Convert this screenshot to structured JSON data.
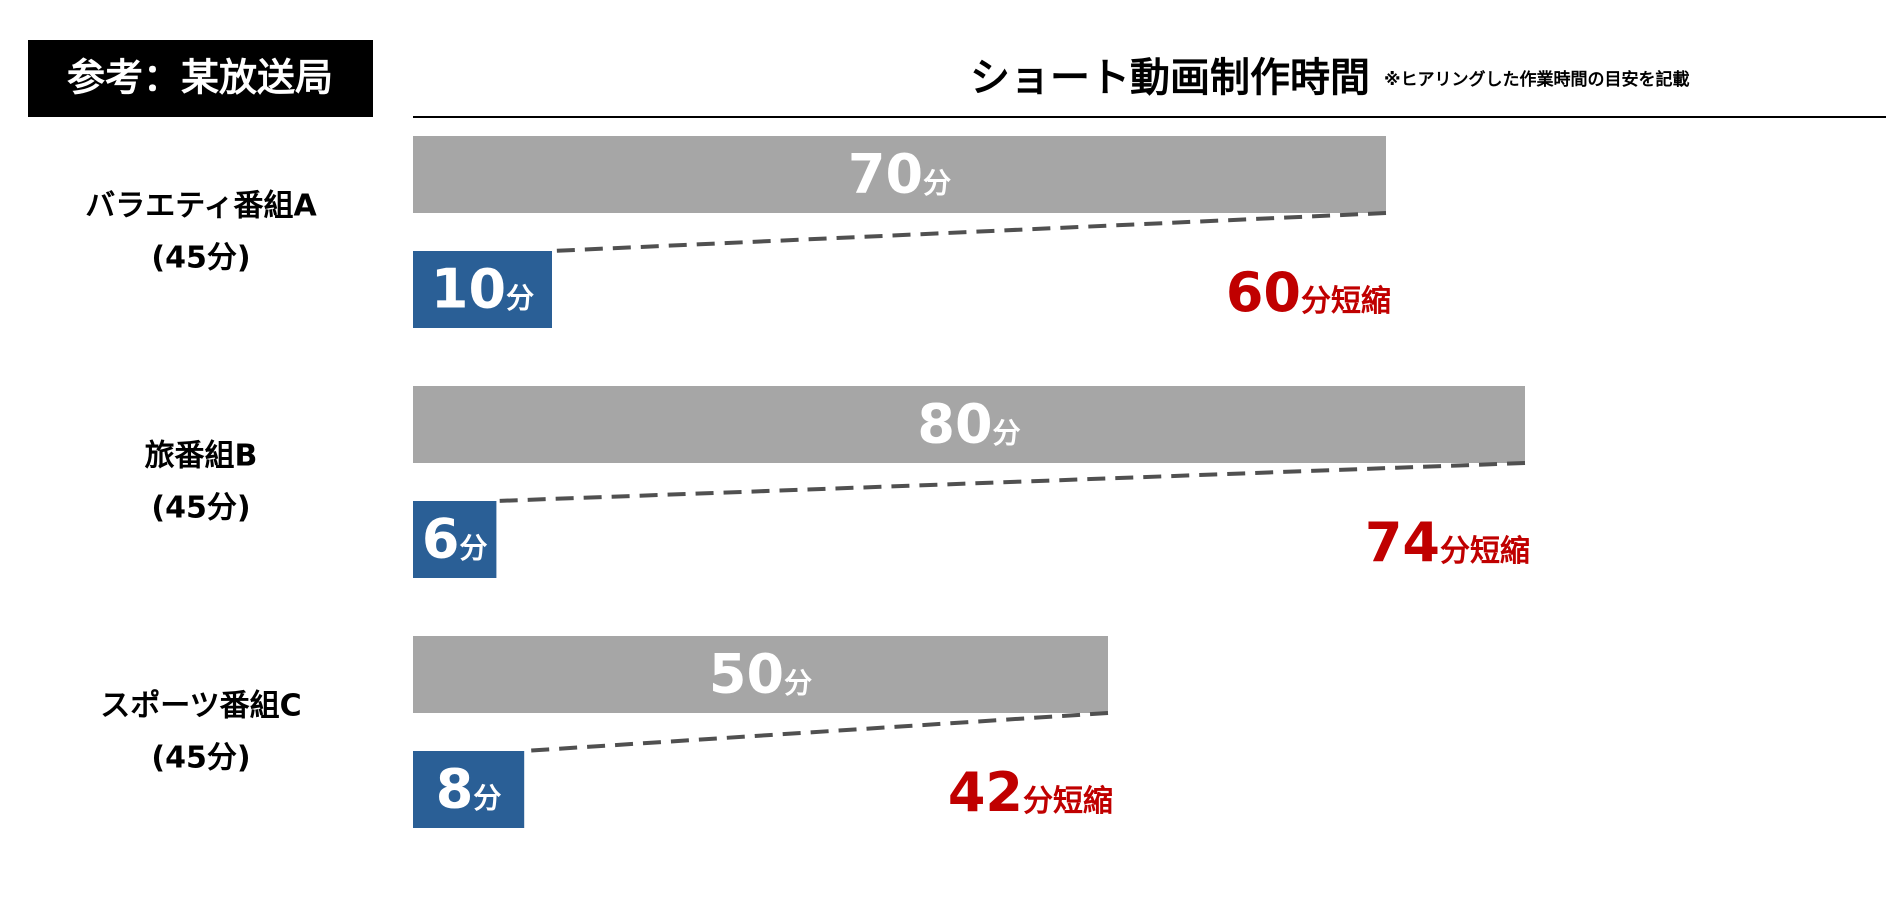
{
  "badge": "参考：某放送局",
  "chart_data": {
    "type": "bar",
    "title": "ショート動画制作時間",
    "note": "※ヒアリングした作業時間の目安を記載",
    "categories": [
      "バラエティ番組A",
      "旅番組B",
      "スポーツ番組C"
    ],
    "category_notes": [
      "(45分)",
      "(45分)",
      "(45分)"
    ],
    "unit": "分",
    "series": [
      {
        "color": "#a6a6a6",
        "values": [
          70,
          80,
          50
        ]
      },
      {
        "color": "#2a5f96",
        "values": [
          10,
          6,
          8
        ]
      }
    ],
    "reductions": [
      60,
      74,
      42
    ],
    "reduction_unit": "分短縮",
    "reduction_color": "#c00000"
  }
}
